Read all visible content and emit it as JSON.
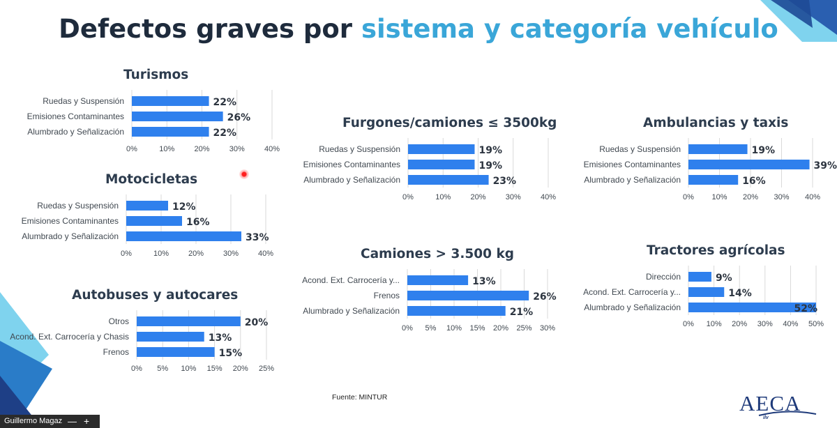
{
  "slide": {
    "title_main": "Defectos graves por",
    "title_accent": "sistema y categoría vehículo",
    "source": "Fuente: MINTUR",
    "logo_text": "AECA",
    "logo_subtext": "ilv",
    "presenter": "Guillermo Magaz",
    "colors": {
      "bar": "#2f80ed",
      "accent": "#3aa6d8",
      "title": "#1e2b3c",
      "deco": "#2a5fb0"
    }
  },
  "chart_data": [
    {
      "type": "bar",
      "orientation": "horizontal",
      "title": "Turismos",
      "categories": [
        "Ruedas y Suspensión",
        "Emisiones Contaminantes",
        "Alumbrado y Señalización"
      ],
      "values": [
        22,
        26,
        22
      ],
      "value_labels": [
        "22%",
        "26%",
        "22%"
      ],
      "xlim": [
        0,
        40
      ],
      "ticks": [
        0,
        10,
        20,
        30,
        40
      ],
      "tick_labels": [
        "0%",
        "10%",
        "20%",
        "30%",
        "40%"
      ],
      "grid": true
    },
    {
      "type": "bar",
      "orientation": "horizontal",
      "title": "Motocicletas",
      "categories": [
        "Ruedas y Suspensión",
        "Emisiones Contaminantes",
        "Alumbrado y Señalización"
      ],
      "values": [
        12,
        16,
        33
      ],
      "value_labels": [
        "12%",
        "16%",
        "33%"
      ],
      "xlim": [
        0,
        40
      ],
      "ticks": [
        0,
        10,
        20,
        30,
        40
      ],
      "tick_labels": [
        "0%",
        "10%",
        "20%",
        "30%",
        "40%"
      ],
      "grid": true
    },
    {
      "type": "bar",
      "orientation": "horizontal",
      "title": "Autobuses y autocares",
      "categories": [
        "Otros",
        "Acond. Ext. Carrocería y Chasis",
        "Frenos"
      ],
      "values": [
        20,
        13,
        15
      ],
      "value_labels": [
        "20%",
        "13%",
        "15%"
      ],
      "xlim": [
        0,
        25
      ],
      "ticks": [
        0,
        5,
        10,
        15,
        20,
        25
      ],
      "tick_labels": [
        "0%",
        "5%",
        "10%",
        "15%",
        "20%",
        "25%"
      ],
      "grid": true
    },
    {
      "type": "bar",
      "orientation": "horizontal",
      "title": "Furgones/camiones ≤ 3500kg",
      "categories": [
        "Ruedas y Suspensión",
        "Emisiones Contaminantes",
        "Alumbrado y Señalización"
      ],
      "values": [
        19,
        19,
        23
      ],
      "value_labels": [
        "19%",
        "19%",
        "23%"
      ],
      "xlim": [
        0,
        40
      ],
      "ticks": [
        0,
        10,
        20,
        30,
        40
      ],
      "tick_labels": [
        "0%",
        "10%",
        "20%",
        "30%",
        "40%"
      ],
      "grid": true
    },
    {
      "type": "bar",
      "orientation": "horizontal",
      "title": "Camiones > 3.500 kg",
      "categories": [
        "Acond. Ext. Carrocería y...",
        "Frenos",
        "Alumbrado y Señalización"
      ],
      "values": [
        13,
        26,
        21
      ],
      "value_labels": [
        "13%",
        "26%",
        "21%"
      ],
      "xlim": [
        0,
        30
      ],
      "ticks": [
        0,
        5,
        10,
        15,
        20,
        25,
        30
      ],
      "tick_labels": [
        "0%",
        "5%",
        "10%",
        "15%",
        "20%",
        "25%",
        "30%"
      ],
      "grid": true
    },
    {
      "type": "bar",
      "orientation": "horizontal",
      "title": "Ambulancias y taxis",
      "categories": [
        "Ruedas y Suspensión",
        "Emisiones Contaminantes",
        "Alumbrado y Señalización"
      ],
      "values": [
        19,
        39,
        16
      ],
      "value_labels": [
        "19%",
        "39%",
        "16%"
      ],
      "xlim": [
        0,
        40
      ],
      "ticks": [
        0,
        10,
        20,
        30,
        40
      ],
      "tick_labels": [
        "0%",
        "10%",
        "20%",
        "30%",
        "40%"
      ],
      "grid": true
    },
    {
      "type": "bar",
      "orientation": "horizontal",
      "title": "Tractores agrícolas",
      "categories": [
        "Dirección",
        "Acond. Ext. Carrocería y...",
        "Alumbrado y Señalización"
      ],
      "values": [
        9,
        14,
        52
      ],
      "value_labels": [
        "9%",
        "14%",
        "52%"
      ],
      "xlim": [
        0,
        50
      ],
      "ticks": [
        0,
        10,
        20,
        30,
        40,
        50
      ],
      "tick_labels": [
        "0%",
        "10%",
        "20%",
        "30%",
        "40%",
        "50%"
      ],
      "grid": true
    }
  ]
}
